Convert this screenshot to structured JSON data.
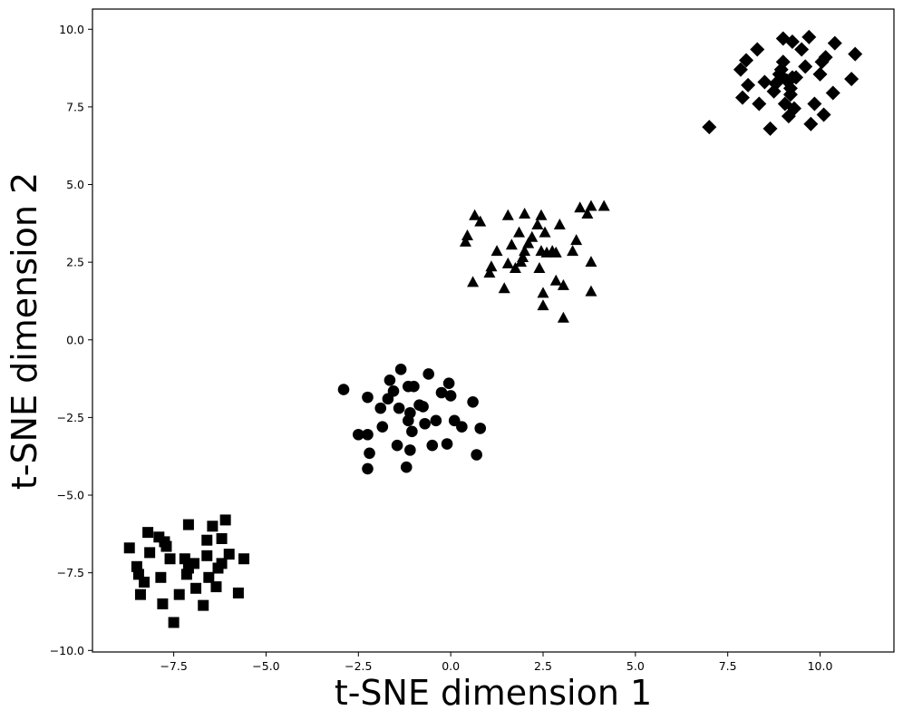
{
  "chart_data": {
    "type": "scatter",
    "title": "",
    "xlabel": "t-SNE dimension 1",
    "ylabel": "t-SNE dimension 2",
    "xlim": [
      -9.7,
      12.0
    ],
    "ylim": [
      -10.05,
      10.65
    ],
    "xticks": [
      -7.5,
      -5.0,
      -2.5,
      0.0,
      2.5,
      5.0,
      7.5,
      10.0
    ],
    "xtick_labels": [
      "−7.5",
      "−5.0",
      "−2.5",
      "0.0",
      "2.5",
      "5.0",
      "7.5",
      "10.0"
    ],
    "yticks": [
      -10.0,
      -7.5,
      -5.0,
      -2.5,
      0.0,
      2.5,
      5.0,
      7.5,
      10.0
    ],
    "ytick_labels": [
      "−10.0",
      "−7.5",
      "−5.0",
      "−2.5",
      "0.0",
      "2.5",
      "5.0",
      "7.5",
      "10.0"
    ],
    "grid": false,
    "legend": "none",
    "marker_color": "#000000",
    "series": [
      {
        "marker": "square",
        "points": [
          [
            -8.7,
            -6.7
          ],
          [
            -8.5,
            -7.3
          ],
          [
            -8.45,
            -7.55
          ],
          [
            -8.4,
            -8.2
          ],
          [
            -8.3,
            -7.8
          ],
          [
            -8.2,
            -6.2
          ],
          [
            -8.15,
            -6.85
          ],
          [
            -7.9,
            -6.35
          ],
          [
            -7.85,
            -7.65
          ],
          [
            -7.8,
            -8.5
          ],
          [
            -7.75,
            -6.5
          ],
          [
            -7.7,
            -6.65
          ],
          [
            -7.6,
            -7.05
          ],
          [
            -7.5,
            -9.1
          ],
          [
            -7.35,
            -8.2
          ],
          [
            -7.2,
            -7.05
          ],
          [
            -7.15,
            -7.55
          ],
          [
            -7.1,
            -5.95
          ],
          [
            -7.1,
            -7.35
          ],
          [
            -6.95,
            -7.2
          ],
          [
            -6.9,
            -8.0
          ],
          [
            -6.7,
            -8.55
          ],
          [
            -6.6,
            -6.45
          ],
          [
            -6.6,
            -6.95
          ],
          [
            -6.55,
            -7.65
          ],
          [
            -6.45,
            -6.0
          ],
          [
            -6.35,
            -7.95
          ],
          [
            -6.3,
            -7.35
          ],
          [
            -6.2,
            -7.2
          ],
          [
            -6.2,
            -6.4
          ],
          [
            -6.1,
            -5.8
          ],
          [
            -6.0,
            -6.9
          ],
          [
            -5.75,
            -8.15
          ],
          [
            -5.6,
            -7.05
          ]
        ]
      },
      {
        "marker": "circle",
        "points": [
          [
            -2.9,
            -1.6
          ],
          [
            -2.5,
            -3.05
          ],
          [
            -2.25,
            -1.85
          ],
          [
            -2.25,
            -3.05
          ],
          [
            -2.25,
            -4.15
          ],
          [
            -2.2,
            -3.65
          ],
          [
            -1.9,
            -2.2
          ],
          [
            -1.85,
            -2.8
          ],
          [
            -1.7,
            -1.9
          ],
          [
            -1.65,
            -1.3
          ],
          [
            -1.55,
            -1.65
          ],
          [
            -1.45,
            -3.4
          ],
          [
            -1.4,
            -2.2
          ],
          [
            -1.35,
            -0.95
          ],
          [
            -1.2,
            -4.1
          ],
          [
            -1.15,
            -1.5
          ],
          [
            -1.15,
            -2.6
          ],
          [
            -1.1,
            -2.35
          ],
          [
            -1.1,
            -3.55
          ],
          [
            -1.05,
            -2.95
          ],
          [
            -1.0,
            -1.5
          ],
          [
            -0.85,
            -2.1
          ],
          [
            -0.75,
            -2.15
          ],
          [
            -0.7,
            -2.7
          ],
          [
            -0.6,
            -1.1
          ],
          [
            -0.5,
            -3.4
          ],
          [
            -0.4,
            -2.6
          ],
          [
            -0.25,
            -1.7
          ],
          [
            -0.1,
            -3.35
          ],
          [
            -0.05,
            -1.4
          ],
          [
            0.0,
            -1.8
          ],
          [
            0.1,
            -2.6
          ],
          [
            0.3,
            -2.8
          ],
          [
            0.6,
            -2.0
          ],
          [
            0.7,
            -3.7
          ],
          [
            0.8,
            -2.85
          ]
        ]
      },
      {
        "marker": "triangle",
        "points": [
          [
            0.4,
            3.15
          ],
          [
            0.45,
            3.35
          ],
          [
            0.6,
            1.85
          ],
          [
            0.65,
            4.0
          ],
          [
            0.8,
            3.8
          ],
          [
            1.05,
            2.15
          ],
          [
            1.1,
            2.35
          ],
          [
            1.25,
            2.85
          ],
          [
            1.45,
            1.65
          ],
          [
            1.55,
            4.0
          ],
          [
            1.55,
            2.45
          ],
          [
            1.65,
            3.05
          ],
          [
            1.75,
            2.3
          ],
          [
            1.85,
            3.45
          ],
          [
            1.9,
            2.5
          ],
          [
            1.95,
            2.65
          ],
          [
            2.0,
            2.85
          ],
          [
            2.0,
            4.05
          ],
          [
            2.1,
            3.1
          ],
          [
            2.2,
            3.3
          ],
          [
            2.35,
            3.7
          ],
          [
            2.4,
            2.3
          ],
          [
            2.45,
            4.0
          ],
          [
            2.45,
            2.85
          ],
          [
            2.5,
            1.1
          ],
          [
            2.5,
            1.5
          ],
          [
            2.55,
            3.45
          ],
          [
            2.6,
            2.8
          ],
          [
            2.75,
            2.85
          ],
          [
            2.85,
            1.9
          ],
          [
            2.85,
            2.8
          ],
          [
            2.95,
            3.7
          ],
          [
            3.05,
            1.75
          ],
          [
            3.05,
            0.7
          ],
          [
            3.3,
            2.85
          ],
          [
            3.4,
            3.2
          ],
          [
            3.5,
            4.25
          ],
          [
            3.7,
            4.05
          ],
          [
            3.8,
            4.3
          ],
          [
            3.8,
            1.55
          ],
          [
            3.8,
            2.5
          ],
          [
            4.15,
            4.3
          ]
        ]
      },
      {
        "marker": "diamond",
        "points": [
          [
            7.0,
            6.85
          ],
          [
            7.85,
            8.7
          ],
          [
            7.9,
            7.8
          ],
          [
            8.0,
            9.0
          ],
          [
            8.05,
            8.2
          ],
          [
            8.3,
            9.35
          ],
          [
            8.35,
            7.6
          ],
          [
            8.5,
            8.3
          ],
          [
            8.65,
            6.8
          ],
          [
            8.75,
            8.0
          ],
          [
            8.8,
            8.25
          ],
          [
            8.9,
            8.55
          ],
          [
            8.95,
            8.7
          ],
          [
            9.0,
            9.7
          ],
          [
            9.0,
            8.95
          ],
          [
            9.05,
            7.6
          ],
          [
            9.1,
            8.35
          ],
          [
            9.15,
            7.2
          ],
          [
            9.2,
            7.9
          ],
          [
            9.2,
            8.1
          ],
          [
            9.25,
            8.45
          ],
          [
            9.25,
            9.6
          ],
          [
            9.3,
            7.45
          ],
          [
            9.35,
            8.45
          ],
          [
            9.5,
            9.35
          ],
          [
            9.6,
            8.8
          ],
          [
            9.7,
            9.75
          ],
          [
            9.75,
            6.95
          ],
          [
            9.85,
            7.6
          ],
          [
            10.0,
            8.55
          ],
          [
            10.05,
            8.95
          ],
          [
            10.1,
            7.25
          ],
          [
            10.15,
            9.1
          ],
          [
            10.35,
            7.95
          ],
          [
            10.4,
            9.55
          ],
          [
            10.85,
            8.4
          ],
          [
            10.95,
            9.2
          ]
        ]
      }
    ]
  }
}
